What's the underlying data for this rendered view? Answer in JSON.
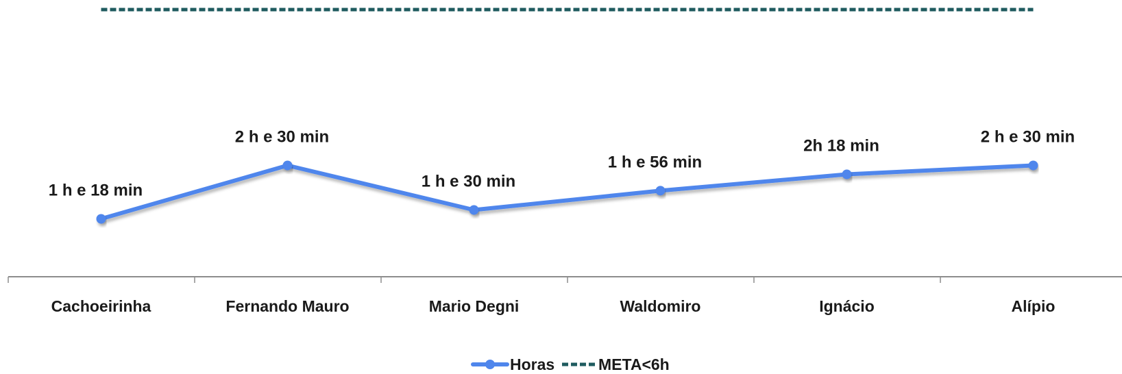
{
  "chart_data": {
    "type": "line",
    "title": "",
    "xlabel": "",
    "ylabel": "",
    "categories": [
      "Cachoeirinha",
      "Fernando Mauro",
      "Mario Degni",
      "Waldomiro",
      "Ignácio",
      "Alípio"
    ],
    "series": [
      {
        "name": "Horas",
        "color": "#4f86ec",
        "values": [
          1.3,
          2.5,
          1.5,
          1.933,
          2.3,
          2.5
        ],
        "data_labels": [
          "1 h e 18 min",
          "2 h e 30 min",
          "1 h e 30 min",
          "1 h e 56 min",
          "2h 18 min",
          "2 h e 30 min"
        ]
      },
      {
        "name": "META<6h",
        "color": "#1f5b5f",
        "style": "dashed",
        "values": [
          6,
          6,
          6,
          6,
          6,
          6
        ]
      }
    ],
    "ylim": [
      0,
      6
    ],
    "grid": false,
    "legend_position": "bottom"
  }
}
